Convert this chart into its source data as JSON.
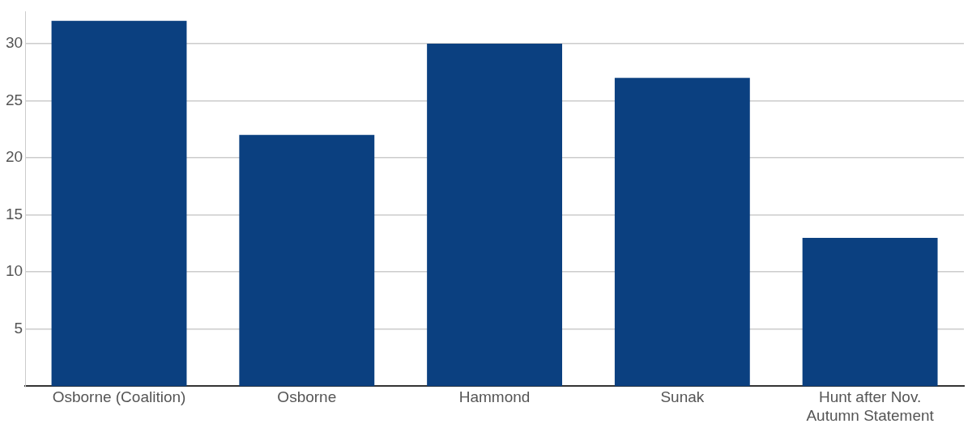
{
  "chart_data": {
    "type": "bar",
    "categories": [
      "Osborne (Coalition)",
      "Osborne",
      "Hammond",
      "Sunak",
      "Hunt after Nov. Autumn Statement"
    ],
    "values": [
      32,
      22,
      30,
      27,
      13
    ],
    "color": "#0b4080",
    "ylim": [
      0,
      32.8
    ],
    "yticks": [
      5,
      10,
      15,
      20,
      25,
      30
    ],
    "grid": "y",
    "legend": false
  }
}
